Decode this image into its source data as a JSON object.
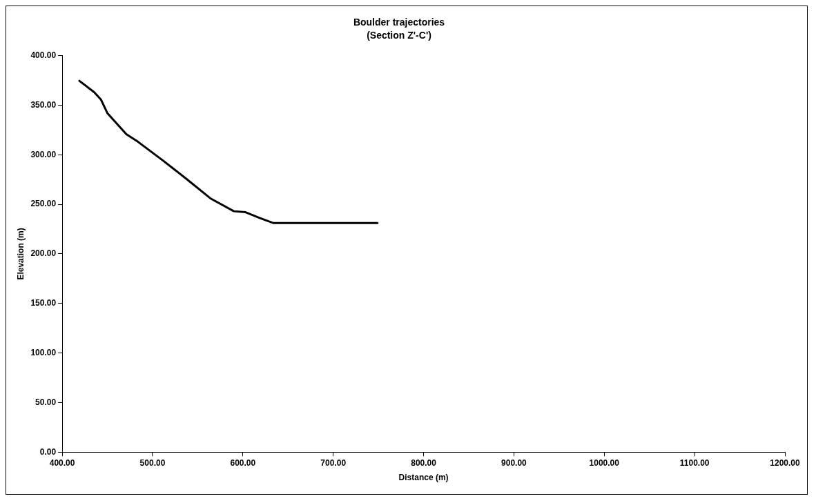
{
  "chart_data": {
    "type": "line",
    "title": "Boulder trajectories",
    "subtitle": "(Section Z'-C')",
    "xlabel": "Distance (m)",
    "ylabel": "Elevation (m)",
    "x": [
      419,
      435.5,
      443,
      450,
      471,
      484,
      511,
      537,
      564,
      590,
      603,
      619,
      634,
      749
    ],
    "series": [
      {
        "color": "#000000",
        "values": [
          374.6,
          363,
          355.5,
          342,
          320.7,
          313,
          294.5,
          276,
          256,
          243,
          242,
          236,
          231,
          231
        ]
      }
    ],
    "xlim": [
      400,
      1200
    ],
    "xticks": [
      {
        "value": 400,
        "label": "400.00"
      },
      {
        "value": 500,
        "label": "500.00"
      },
      {
        "value": 600,
        "label": "600.00"
      },
      {
        "value": 700,
        "label": "700.00"
      },
      {
        "value": 800,
        "label": "800.00"
      },
      {
        "value": 900,
        "label": "900.00"
      },
      {
        "value": 1000,
        "label": "1000.00"
      },
      {
        "value": 1100,
        "label": "1100.00"
      },
      {
        "value": 1200,
        "label": "1200.00"
      }
    ],
    "ylim": [
      0,
      400
    ],
    "yticks": [
      {
        "value": 0,
        "label": "0.00"
      },
      {
        "value": 50,
        "label": "50.00"
      },
      {
        "value": 100,
        "label": "100.00"
      },
      {
        "value": 150,
        "label": "150.00"
      },
      {
        "value": 200,
        "label": "200.00"
      },
      {
        "value": 250,
        "label": "250.00"
      },
      {
        "value": 300,
        "label": "300.00"
      },
      {
        "value": 350,
        "label": "350.00"
      },
      {
        "value": 400,
        "label": "400.00"
      }
    ],
    "grid": false,
    "legend": false,
    "marker": "none",
    "line_style": "solid"
  }
}
